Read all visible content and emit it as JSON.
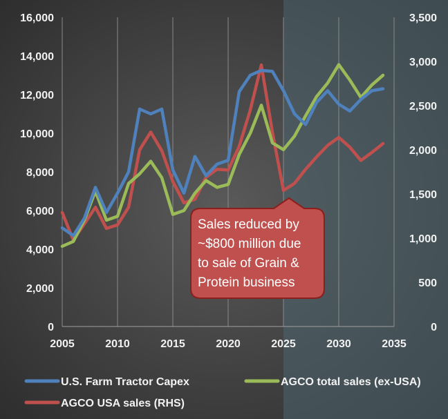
{
  "chart_data": {
    "type": "line",
    "x": [
      2005,
      2006,
      2007,
      2008,
      2009,
      2010,
      2011,
      2012,
      2013,
      2014,
      2015,
      2016,
      2017,
      2018,
      2019,
      2020,
      2021,
      2022,
      2023,
      2024,
      2025,
      2026,
      2027,
      2028,
      2029,
      2030,
      2031,
      2032,
      2033,
      2034
    ],
    "series": [
      {
        "name": "U.S. Farm Tractor Capex",
        "axis": "left",
        "color": "#4f81bd",
        "values": [
          5100,
          4700,
          5600,
          7200,
          5900,
          6900,
          8000,
          11250,
          11000,
          11250,
          8100,
          6900,
          8800,
          7800,
          8400,
          8600,
          12150,
          13000,
          13250,
          13200,
          12200,
          11000,
          10450,
          11600,
          12200,
          11500,
          11150,
          11750,
          12200,
          12300
        ]
      },
      {
        "name": "AGCO total sales (ex-USA)",
        "axis": "left",
        "color": "#9bbb59",
        "values": [
          4150,
          4400,
          5500,
          7000,
          5500,
          5700,
          7400,
          7900,
          8550,
          7700,
          5800,
          6000,
          6900,
          7550,
          7200,
          7350,
          8900,
          10000,
          11450,
          9500,
          9150,
          9850,
          10900,
          11900,
          12600,
          13550,
          12750,
          11850,
          12500,
          13000
        ]
      },
      {
        "name": "AGCO USA sales (RHS)",
        "axis": "right",
        "color": "#c0504d",
        "values": [
          1290,
          980,
          1160,
          1350,
          1110,
          1150,
          1350,
          2000,
          2200,
          1990,
          1640,
          1400,
          1440,
          1690,
          1780,
          1770,
          2040,
          2450,
          2960,
          2200,
          1540,
          1620,
          1780,
          1920,
          2050,
          2140,
          2030,
          1880,
          1970,
          2070
        ]
      }
    ],
    "title": "",
    "xlim": [
      2005,
      2035
    ],
    "xticks": [
      "2005",
      "2010",
      "2015",
      "2020",
      "2025",
      "2030",
      "2035"
    ],
    "ylim_left": [
      0,
      16000
    ],
    "yticks_left": [
      "0",
      "2,000",
      "4,000",
      "6,000",
      "8,000",
      "10,000",
      "12,000",
      "14,000",
      "16,000"
    ],
    "ylim_right": [
      0,
      3500
    ],
    "yticks_right": [
      "0",
      "500",
      "1,000",
      "1,500",
      "2,000",
      "2,500",
      "3,000",
      "3,500"
    ],
    "forecast_shading_from": 2025,
    "grid": "vertical",
    "legend_position": "bottom",
    "annotation": {
      "lines": [
        "Sales reduced by",
        "~$800 million due",
        "to sale of Grain &",
        "Protein business"
      ],
      "color": "#c0504d"
    }
  }
}
